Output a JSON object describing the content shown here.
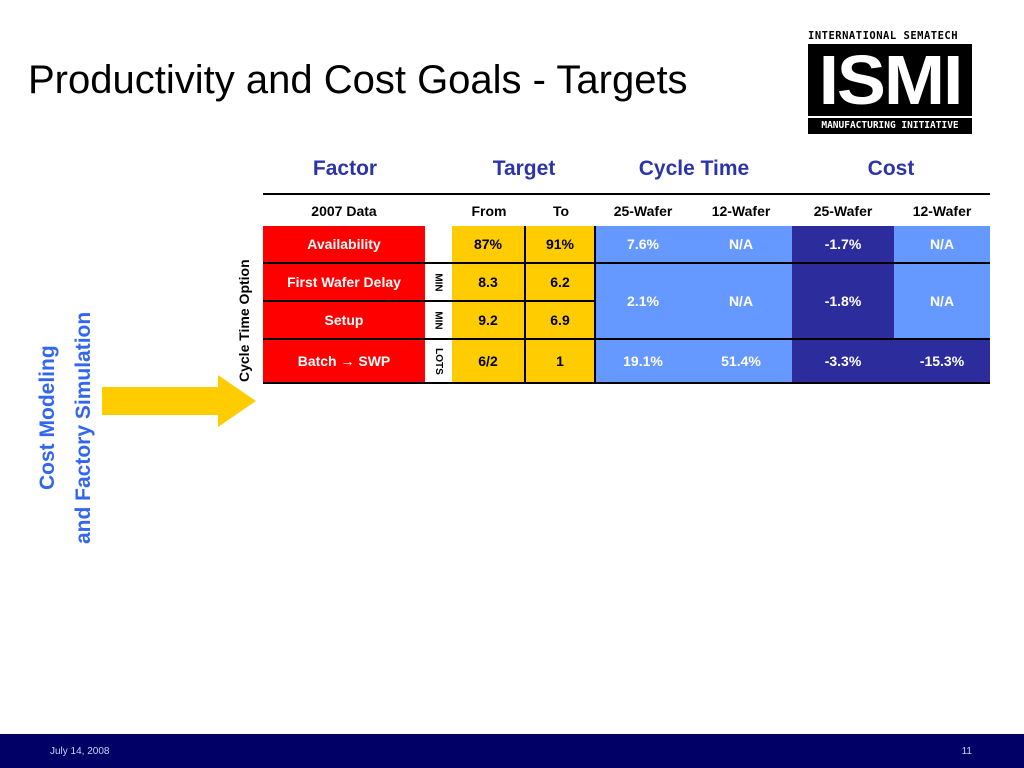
{
  "title": "Productivity and Cost Goals - Targets",
  "logo": {
    "top_text": "INTERNATIONAL SEMATECH",
    "main_text": "ISMI",
    "bottom_text": "MANUFACTURING INITIATIVE"
  },
  "side_label": {
    "line1": "Cost Modeling",
    "line2": "and Factory Simulation"
  },
  "vertical_label": "Cycle Time Option",
  "table": {
    "headers": {
      "factor": "Factor",
      "target": "Target",
      "cycle_time": "Cycle Time",
      "cost": "Cost"
    },
    "subheaders": {
      "data": "2007 Data",
      "from": "From",
      "to": "To",
      "ct25": "25-Wafer",
      "ct12": "12-Wafer",
      "c25": "25-Wafer",
      "c12": "12-Wafer"
    },
    "rows": [
      {
        "factor": "Availability",
        "unit": "",
        "from": "87%",
        "to": "91%",
        "ct25": "7.6%",
        "ct12": "N/A",
        "c25": "-1.7%",
        "c12": "N/A"
      },
      {
        "factor": "First Wafer Delay",
        "unit": "MIN",
        "from": "8.3",
        "to": "6.2"
      },
      {
        "factor": "Setup",
        "unit": "MIN",
        "from": "9.2",
        "to": "6.9"
      },
      {
        "factor": "Batch → SWP",
        "unit": "LOTS",
        "from": "6/2",
        "to": "1",
        "ct25": "19.1%",
        "ct12": "51.4%",
        "c25": "-3.3%",
        "c12": "-15.3%"
      }
    ],
    "merged": {
      "ct25": "2.1%",
      "ct12": "N/A",
      "c25": "-1.8%",
      "c12": "N/A"
    }
  },
  "footer": {
    "date": "July 14, 2008",
    "page": "11"
  },
  "colors": {
    "red": "#ff0000",
    "yellow": "#ffcc00",
    "light_blue": "#6699ff",
    "navy": "#2c2c9c",
    "header_text": "#2c34a8",
    "footer": "#000066"
  }
}
